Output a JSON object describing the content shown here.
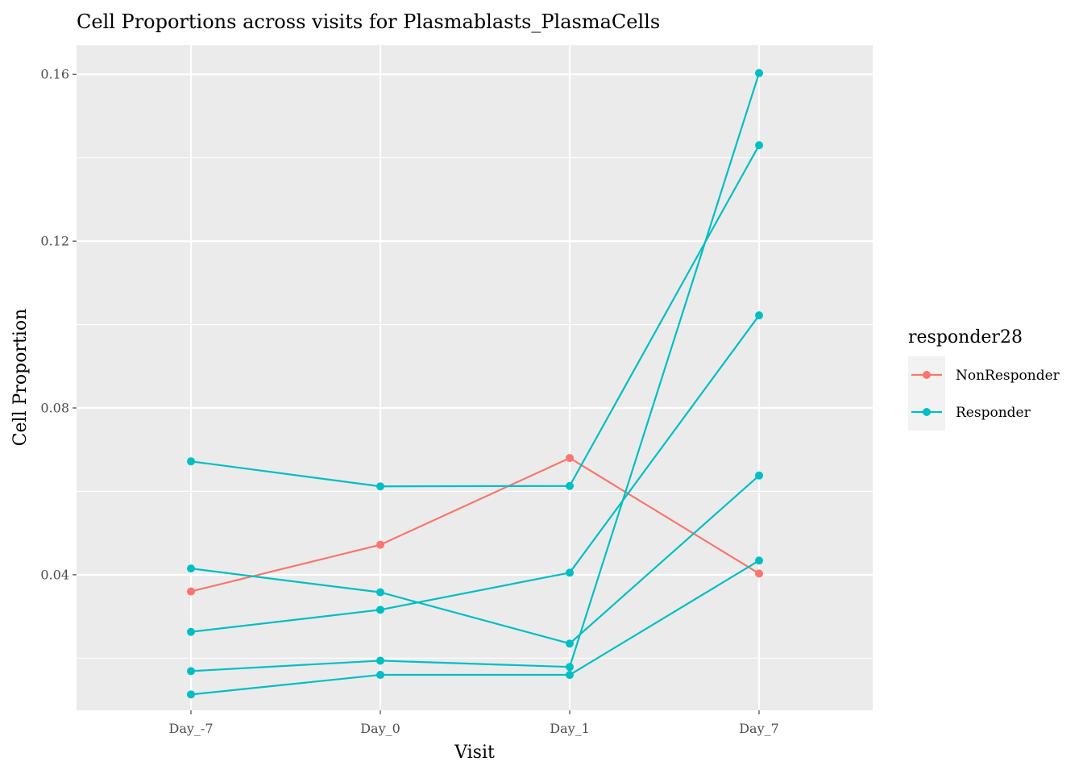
{
  "chart_data": {
    "type": "line",
    "title": "Cell Proportions across visits for Plasmablasts_PlasmaCells",
    "xlabel": "Visit",
    "ylabel": "Cell Proportion",
    "categories": [
      "Day_-7",
      "Day_0",
      "Day_1",
      "Day_7"
    ],
    "ylim": [
      0.0075,
      0.167
    ],
    "yticks": [
      0.04,
      0.08,
      0.12,
      0.16
    ],
    "ytick_labels": [
      "0.04",
      "0.08",
      "0.12",
      "0.16"
    ],
    "grid": true,
    "legend": {
      "title": "responder28",
      "position": "right",
      "entries": [
        {
          "label": "NonResponder",
          "color": "#F8766D"
        },
        {
          "label": "Responder",
          "color": "#00BFC4"
        }
      ]
    },
    "series": [
      {
        "group": "NonResponder",
        "color": "#F8766D",
        "values": [
          0.036,
          0.0472,
          0.068,
          0.0403
        ]
      },
      {
        "group": "Responder",
        "color": "#00BFC4",
        "values": [
          0.0672,
          0.0612,
          0.0613,
          0.143
        ]
      },
      {
        "group": "Responder",
        "color": "#00BFC4",
        "values": [
          0.0415,
          0.0358,
          0.0235,
          0.0638
        ]
      },
      {
        "group": "Responder",
        "color": "#00BFC4",
        "values": [
          0.0263,
          0.0316,
          0.0405,
          0.1022
        ]
      },
      {
        "group": "Responder",
        "color": "#00BFC4",
        "values": [
          0.0169,
          0.0194,
          0.0179,
          0.1603
        ]
      },
      {
        "group": "Responder",
        "color": "#00BFC4",
        "values": [
          0.0113,
          0.016,
          0.016,
          0.0434
        ]
      }
    ]
  }
}
